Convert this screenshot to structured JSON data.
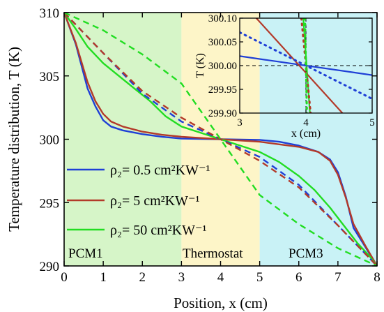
{
  "chart_data": {
    "type": "line",
    "xlabel": "Position, x (cm)",
    "ylabel": "Temperature distribution, T (K)",
    "xlim": [
      0,
      8
    ],
    "ylim": [
      290,
      310
    ],
    "xticks": [
      "0",
      "1",
      "2",
      "3",
      "4",
      "5",
      "6",
      "7",
      "8"
    ],
    "yticks": [
      "290",
      "295",
      "300",
      "305",
      "310"
    ],
    "regions": [
      {
        "label": "PCM1",
        "x": [
          0,
          3
        ],
        "color": "#d6f5c8"
      },
      {
        "label": "Thermostat",
        "x": [
          3,
          5
        ],
        "color": "#fdf5c8"
      },
      {
        "label": "PCM3",
        "x": [
          5,
          8
        ],
        "color": "#c9f2f6"
      }
    ],
    "legend": {
      "placement": "center-left",
      "entries": [
        {
          "label": "ρ₂= 0.5 cm²KW⁻¹",
          "color": "#1f3fd6"
        },
        {
          "label": "ρ₂= 5 cm²KW⁻¹",
          "color": "#b33a2a"
        },
        {
          "label": "ρ₂= 50 cm²KW⁻¹",
          "color": "#22dd22"
        }
      ]
    },
    "series": [
      {
        "color": "#1f3fd6",
        "style": "solid",
        "x": [
          0,
          0.3,
          0.6,
          0.8,
          1.0,
          1.2,
          1.5,
          2,
          2.5,
          3,
          3.5,
          4,
          4.5,
          5,
          5.5,
          6,
          6.5,
          6.8,
          7,
          7.2,
          7.4,
          7.7,
          8
        ],
        "y": [
          310,
          307.5,
          304,
          302.6,
          301.5,
          301.0,
          300.7,
          300.4,
          300.2,
          300.05,
          300.02,
          300,
          299.98,
          299.95,
          299.8,
          299.5,
          299.0,
          298.4,
          297.4,
          295.5,
          293,
          291.5,
          290
        ]
      },
      {
        "color": "#b33a2a",
        "style": "solid",
        "x": [
          0,
          0.3,
          0.6,
          0.8,
          1.0,
          1.2,
          1.5,
          2,
          2.5,
          3,
          3.5,
          4,
          4.5,
          5,
          5.5,
          6,
          6.5,
          6.8,
          7,
          7.2,
          7.4,
          7.7,
          8
        ],
        "y": [
          310,
          307.6,
          304.5,
          303,
          302,
          301.4,
          301.0,
          300.6,
          300.35,
          300.2,
          300.1,
          300,
          299.9,
          299.8,
          299.6,
          299.4,
          299.0,
          298.3,
          297.2,
          295.4,
          293.3,
          291.6,
          290
        ]
      },
      {
        "color": "#22dd22",
        "style": "solid",
        "x": [
          0,
          0.3,
          0.6,
          1.0,
          1.4,
          1.8,
          2.2,
          2.6,
          3,
          3.5,
          4,
          4.5,
          5,
          5.5,
          6,
          6.4,
          6.8,
          7.2,
          7.5,
          7.8,
          8
        ],
        "y": [
          310,
          308.7,
          307.3,
          306.0,
          305.0,
          304.0,
          303.0,
          301.8,
          301.0,
          300.5,
          300,
          299.5,
          299.0,
          298.2,
          297.1,
          296.0,
          294.6,
          293,
          291.8,
          290.8,
          290
        ]
      },
      {
        "color": "#1f3fd6",
        "style": "dashed",
        "x": [
          0,
          1,
          2,
          3,
          4,
          5,
          6,
          7,
          8
        ],
        "y": [
          310,
          306.8,
          303.6,
          301.4,
          300,
          298.6,
          296.4,
          293.2,
          290
        ]
      },
      {
        "color": "#b33a2a",
        "style": "dashed",
        "x": [
          0,
          1,
          2,
          3,
          4,
          5,
          6,
          7,
          8
        ],
        "y": [
          310,
          306.8,
          303.8,
          301.7,
          300,
          298.3,
          296.2,
          293.2,
          290
        ]
      },
      {
        "color": "#22dd22",
        "style": "dashed",
        "x": [
          0,
          1,
          2,
          3,
          4,
          5,
          6,
          7,
          8
        ],
        "y": [
          310,
          308.6,
          306.7,
          304.4,
          300,
          295.6,
          293.3,
          291.4,
          290
        ]
      }
    ],
    "inset": {
      "xlabel": "x (cm)",
      "ylabel": "T (K)",
      "xlim": [
        3,
        5
      ],
      "ylim": [
        299.9,
        300.1
      ],
      "xticks": [
        "3",
        "4",
        "5"
      ],
      "yticks": [
        "299.90",
        "299.95",
        "300.00",
        "300.05",
        "300.10"
      ],
      "series": [
        {
          "color": "#1f3fd6",
          "style": "solid",
          "x": [
            3,
            5
          ],
          "y": [
            300.02,
            299.98
          ]
        },
        {
          "color": "#b33a2a",
          "style": "solid",
          "x": [
            3.25,
            4.55
          ],
          "y": [
            300.1,
            299.9
          ]
        },
        {
          "color": "#22dd22",
          "style": "solid",
          "x": [
            3.96,
            4.06
          ],
          "y": [
            300.1,
            299.9
          ]
        },
        {
          "color": "#1f3fd6",
          "style": "dotted",
          "x": [
            3,
            5
          ],
          "y": [
            300.07,
            299.93
          ]
        },
        {
          "color": "#b33a2a",
          "style": "dotted",
          "x": [
            3.93,
            4.07
          ],
          "y": [
            300.1,
            299.9
          ]
        },
        {
          "color": "#22dd22",
          "style": "dotted",
          "x": [
            3.985,
            4.015
          ],
          "y": [
            300.1,
            299.9
          ]
        }
      ]
    }
  }
}
